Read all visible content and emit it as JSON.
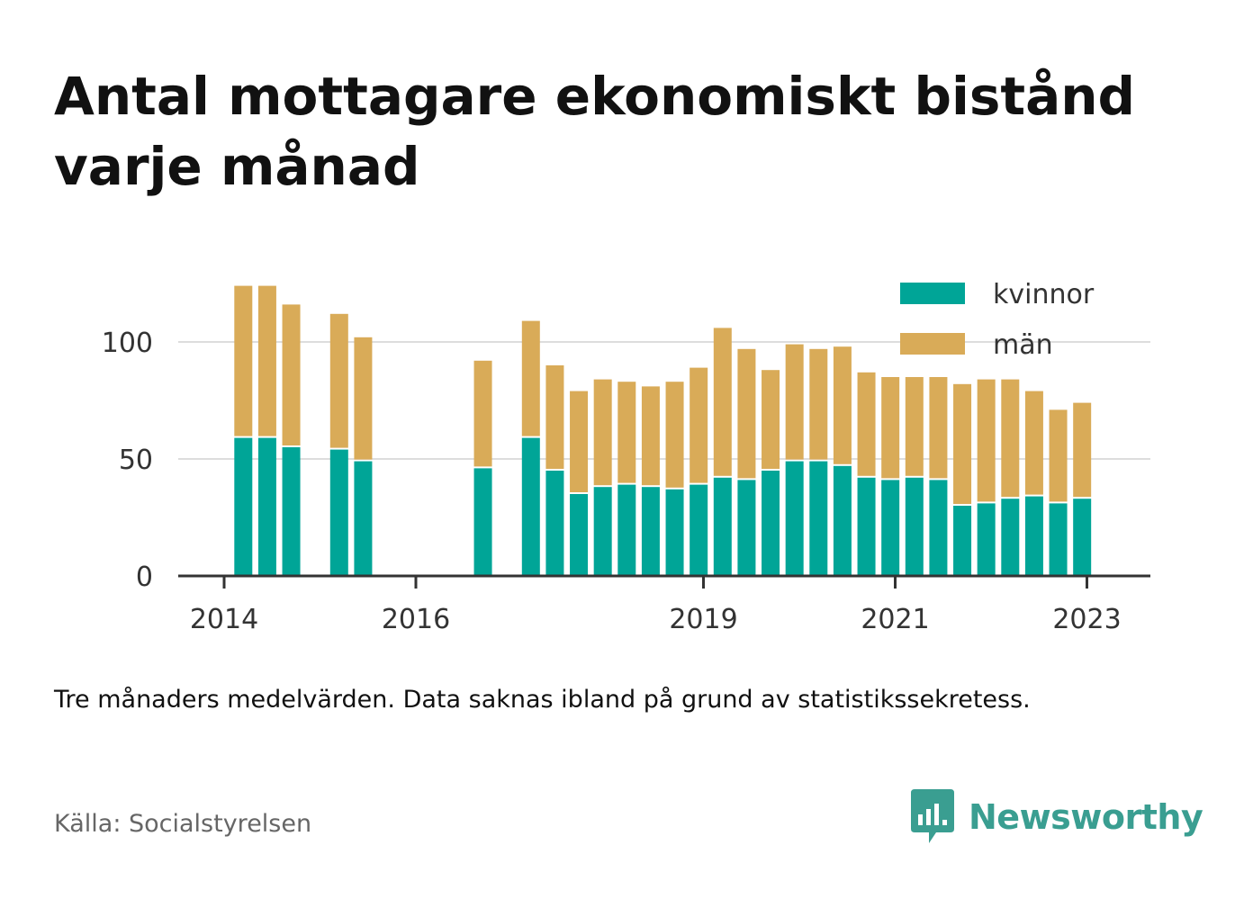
{
  "title": "Antal mottagare ekonomiskt bistånd varje månad",
  "note": "Tre månaders medelvärden. Data saknas ibland på grund av statistikssekretess.",
  "source": "Källa: Socialstyrelsen",
  "brand": "Newsworthy",
  "colors": {
    "kvinnor": "#00a597",
    "man": "#d9ab58",
    "axis": "#333333",
    "grid": "#dddddd",
    "brand": "#3a9e91"
  },
  "chart_data": {
    "type": "bar",
    "stacked": true,
    "x_ticks": [
      "2014",
      "2016",
      "2019",
      "2021",
      "2023"
    ],
    "y_ticks": [
      "0",
      "50",
      "100"
    ],
    "ylim": [
      0,
      130
    ],
    "legend": [
      {
        "name": "kvinnor",
        "color": "#00a597"
      },
      {
        "name": "män",
        "color": "#d9ab58"
      }
    ],
    "legend_position": "top-right",
    "grid": true,
    "bars": [
      {
        "x": 2014.2,
        "kvinnor": 59,
        "man": 65
      },
      {
        "x": 2014.45,
        "kvinnor": 59,
        "man": 65
      },
      {
        "x": 2014.7,
        "kvinnor": 55,
        "man": 61
      },
      {
        "x": 2015.2,
        "kvinnor": 54,
        "man": 58
      },
      {
        "x": 2015.45,
        "kvinnor": 49,
        "man": 53
      },
      {
        "x": 2016.7,
        "kvinnor": 46,
        "man": 46
      },
      {
        "x": 2017.2,
        "kvinnor": 59,
        "man": 50
      },
      {
        "x": 2017.45,
        "kvinnor": 45,
        "man": 45
      },
      {
        "x": 2017.7,
        "kvinnor": 35,
        "man": 44
      },
      {
        "x": 2017.95,
        "kvinnor": 38,
        "man": 46
      },
      {
        "x": 2018.2,
        "kvinnor": 39,
        "man": 44
      },
      {
        "x": 2018.45,
        "kvinnor": 38,
        "man": 43
      },
      {
        "x": 2018.7,
        "kvinnor": 37,
        "man": 46
      },
      {
        "x": 2018.95,
        "kvinnor": 39,
        "man": 50
      },
      {
        "x": 2019.2,
        "kvinnor": 42,
        "man": 64
      },
      {
        "x": 2019.45,
        "kvinnor": 41,
        "man": 56
      },
      {
        "x": 2019.7,
        "kvinnor": 45,
        "man": 43
      },
      {
        "x": 2019.95,
        "kvinnor": 49,
        "man": 50
      },
      {
        "x": 2020.2,
        "kvinnor": 49,
        "man": 48
      },
      {
        "x": 2020.45,
        "kvinnor": 47,
        "man": 51
      },
      {
        "x": 2020.7,
        "kvinnor": 42,
        "man": 45
      },
      {
        "x": 2020.95,
        "kvinnor": 41,
        "man": 44
      },
      {
        "x": 2021.2,
        "kvinnor": 42,
        "man": 43
      },
      {
        "x": 2021.45,
        "kvinnor": 41,
        "man": 44
      },
      {
        "x": 2021.7,
        "kvinnor": 30,
        "man": 52
      },
      {
        "x": 2021.95,
        "kvinnor": 31,
        "man": 53
      },
      {
        "x": 2022.2,
        "kvinnor": 33,
        "man": 51
      },
      {
        "x": 2022.45,
        "kvinnor": 34,
        "man": 45
      },
      {
        "x": 2022.7,
        "kvinnor": 31,
        "man": 40
      },
      {
        "x": 2022.95,
        "kvinnor": 33,
        "man": 41
      }
    ]
  }
}
